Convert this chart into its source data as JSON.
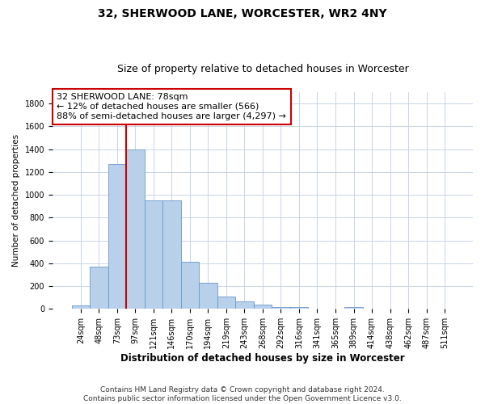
{
  "title": "32, SHERWOOD LANE, WORCESTER, WR2 4NY",
  "subtitle": "Size of property relative to detached houses in Worcester",
  "xlabel": "Distribution of detached houses by size in Worcester",
  "ylabel": "Number of detached properties",
  "categories": [
    "24sqm",
    "48sqm",
    "73sqm",
    "97sqm",
    "121sqm",
    "146sqm",
    "170sqm",
    "194sqm",
    "219sqm",
    "243sqm",
    "268sqm",
    "292sqm",
    "316sqm",
    "341sqm",
    "365sqm",
    "389sqm",
    "414sqm",
    "438sqm",
    "462sqm",
    "487sqm",
    "511sqm"
  ],
  "values": [
    30,
    370,
    1270,
    1400,
    950,
    950,
    410,
    230,
    110,
    65,
    40,
    15,
    15,
    5,
    5,
    20,
    5,
    5,
    5,
    5,
    5
  ],
  "bar_color": "#b8d0ea",
  "bar_edge_color": "#6699cc",
  "grid_color": "#c8d4e8",
  "vline_color": "#cc0000",
  "annotation_line1": "32 SHERWOOD LANE: 78sqm",
  "annotation_line2": "← 12% of detached houses are smaller (566)",
  "annotation_line3": "88% of semi-detached houses are larger (4,297) →",
  "annotation_box_color": "#ffffff",
  "annotation_box_edge": "#cc0000",
  "footer": "Contains HM Land Registry data © Crown copyright and database right 2024.\nContains public sector information licensed under the Open Government Licence v3.0.",
  "ylim": [
    0,
    1900
  ],
  "yticks": [
    0,
    200,
    400,
    600,
    800,
    1000,
    1200,
    1400,
    1600,
    1800
  ],
  "title_fontsize": 10,
  "subtitle_fontsize": 9,
  "xlabel_fontsize": 8.5,
  "ylabel_fontsize": 7.5,
  "tick_fontsize": 7,
  "annotation_fontsize": 8,
  "footer_fontsize": 6.5
}
